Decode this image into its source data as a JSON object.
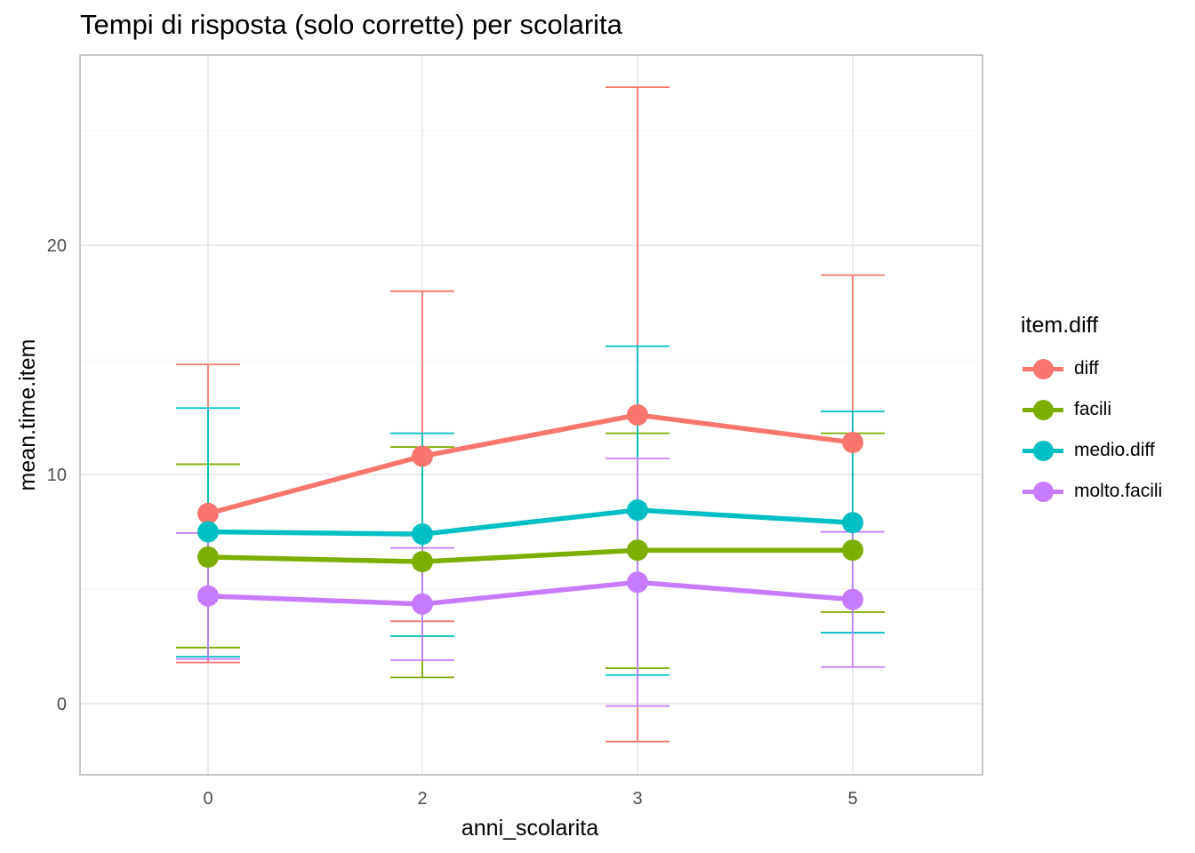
{
  "chart_data": {
    "type": "line",
    "title": "Tempi di risposta (solo corrette) per scolarita",
    "xlabel": "anni_scolarita",
    "ylabel": "mean.time.item",
    "categories": [
      "0",
      "2",
      "3",
      "5"
    ],
    "yticks": [
      0,
      10,
      20
    ],
    "ylim": [
      -3.1,
      28.3
    ],
    "grid": true,
    "legend_title": "item.diff",
    "legend_position": "right",
    "series": [
      {
        "name": "diff",
        "color": "#F8766D",
        "values": [
          8.3,
          10.8,
          12.6,
          11.4
        ],
        "err_low": [
          1.8,
          3.6,
          -1.65,
          4.0
        ],
        "err_high": [
          14.8,
          18.0,
          26.9,
          18.7
        ]
      },
      {
        "name": "facili",
        "color": "#7CAE00",
        "values": [
          6.4,
          6.2,
          6.7,
          6.7
        ],
        "err_low": [
          2.45,
          1.15,
          1.55,
          4.0
        ],
        "err_high": [
          10.45,
          11.2,
          11.8,
          11.8
        ]
      },
      {
        "name": "medio.diff",
        "color": "#00BFC4",
        "values": [
          7.5,
          7.4,
          8.45,
          7.9
        ],
        "err_low": [
          2.05,
          2.95,
          1.25,
          3.1
        ],
        "err_high": [
          12.9,
          11.8,
          15.6,
          12.75
        ]
      },
      {
        "name": "molto.facili",
        "color": "#C77CFF",
        "values": [
          4.7,
          4.35,
          5.3,
          4.55
        ],
        "err_low": [
          1.95,
          1.9,
          -0.1,
          1.6
        ],
        "err_high": [
          7.45,
          6.8,
          10.7,
          7.5
        ]
      }
    ]
  }
}
